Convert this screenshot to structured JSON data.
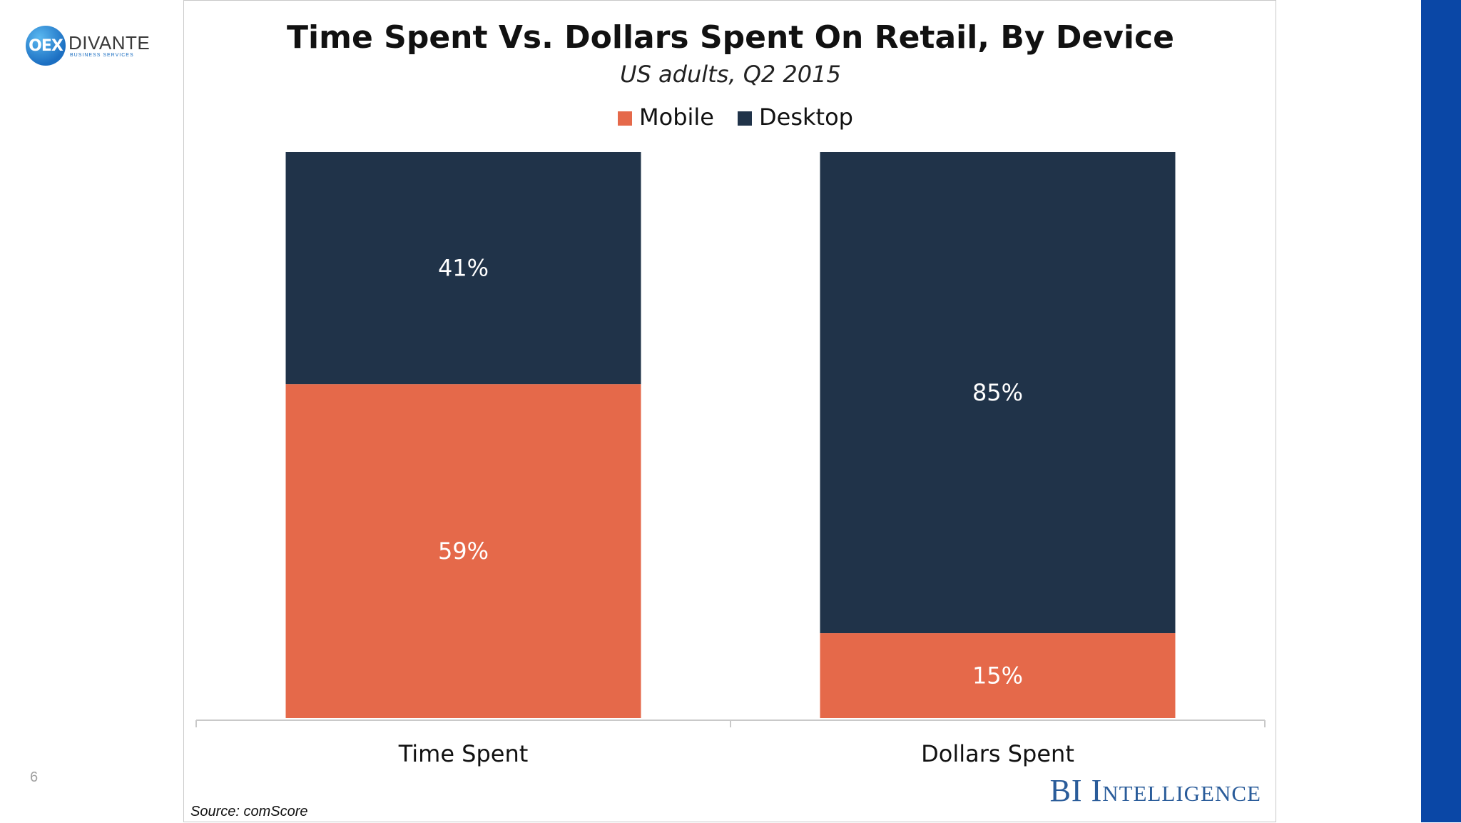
{
  "slide": {
    "logo_mark": "OEX",
    "logo_name": "DIVANTE",
    "logo_tagline": "BUSINESS SERVICES",
    "page_number": "6",
    "accent_color": "#0a47a6"
  },
  "chart_data": {
    "type": "bar",
    "stacked": true,
    "title": "Time Spent Vs. Dollars Spent On Retail, By Device",
    "subtitle": "US adults, Q2 2015",
    "categories": [
      "Time Spent",
      "Dollars Spent"
    ],
    "series": [
      {
        "name": "Mobile",
        "color": "#e5694a",
        "values": [
          59,
          15
        ],
        "labels": [
          "59%",
          "15%"
        ]
      },
      {
        "name": "Desktop",
        "color": "#203349",
        "values": [
          41,
          85
        ],
        "labels": [
          "41%",
          "85%"
        ]
      }
    ],
    "ylim": [
      0,
      100
    ],
    "xlabel": "",
    "ylabel": "",
    "grid": false,
    "legend": "top-center",
    "source": "Source: comScore",
    "brand": "BI Intelligence",
    "brand_color": "#2a5c9a"
  }
}
